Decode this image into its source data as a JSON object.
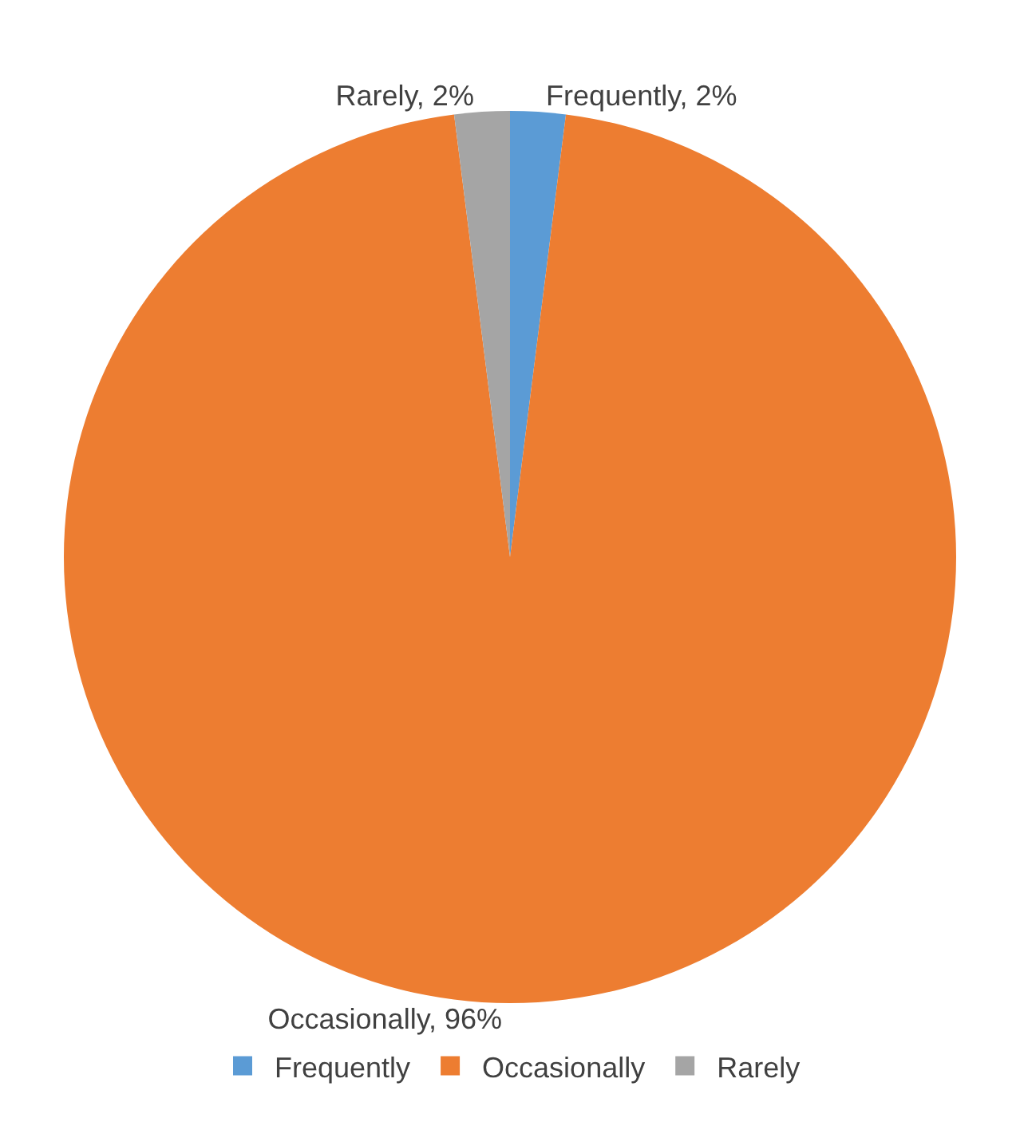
{
  "chart_data": {
    "type": "pie",
    "categories": [
      "Frequently",
      "Occasionally",
      "Rarely"
    ],
    "values": [
      2,
      96,
      2
    ],
    "colors": [
      "#5b9bd5",
      "#ed7d31",
      "#a5a5a5"
    ],
    "value_labels": [
      "Frequently, 2%",
      "Occasionally, 96%",
      "Rarely, 2%"
    ],
    "legend": "bottom"
  }
}
